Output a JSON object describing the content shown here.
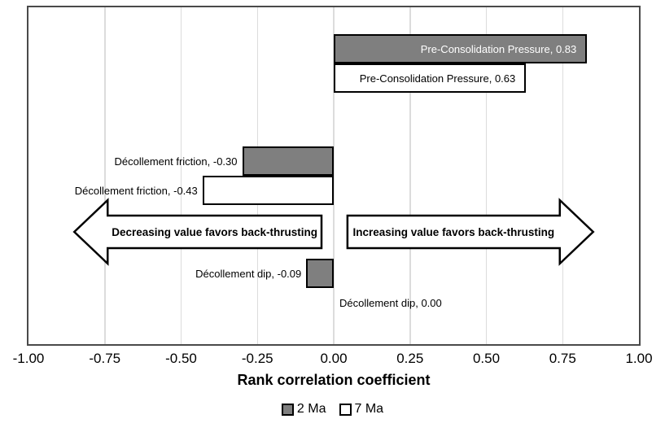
{
  "chart_data": {
    "type": "bar",
    "orientation": "horizontal",
    "title": "",
    "xlabel": "Rank correlation coefficient",
    "ylabel": "",
    "xlim": [
      -1.0,
      1.0
    ],
    "xticks": [
      "-1.00",
      "-0.75",
      "-0.50",
      "-0.25",
      "0.00",
      "0.25",
      "0.50",
      "0.75",
      "1.00"
    ],
    "xtick_values": [
      -1.0,
      -0.75,
      -0.5,
      -0.25,
      0.0,
      0.25,
      0.5,
      0.75,
      1.0
    ],
    "grid": true,
    "legend_position": "bottom",
    "categories": [
      "Pre-Consolidation Pressure",
      "Décollement friction",
      "Décollement dip"
    ],
    "series": [
      {
        "name": "2 Ma",
        "fill": "#7F7F7F",
        "values": [
          0.83,
          -0.3,
          -0.09
        ],
        "labels": [
          "Pre-Consolidation Pressure, 0.83",
          "Décollement friction, -0.30",
          "Décollement dip, -0.09"
        ],
        "label_pos": [
          "inside-end",
          "outside-left",
          "outside-left"
        ],
        "label_colors": [
          "#FFFFFF",
          "#000000",
          "#000000"
        ]
      },
      {
        "name": "7 Ma",
        "fill": "#FFFFFF",
        "values": [
          0.63,
          -0.43,
          0.0
        ],
        "labels": [
          "Pre-Consolidation Pressure, 0.63",
          "Décollement friction, -0.43",
          "Décollement dip, 0.00"
        ],
        "label_pos": [
          "inside-end",
          "outside-left",
          "outside-right"
        ],
        "label_colors": [
          "#000000",
          "#000000",
          "#000000"
        ]
      }
    ],
    "annotations": [
      {
        "text": "Decreasing value favors back-thrusting",
        "direction": "left",
        "tip_value": -0.85,
        "tail_value": -0.04
      },
      {
        "text": "Increasing value favors back-thrusting",
        "direction": "right",
        "tip_value": 0.85,
        "tail_value": 0.045
      }
    ],
    "colors": {
      "gray_fill": "#7F7F7F",
      "white_fill": "#FFFFFF",
      "bar_border": "#000000",
      "plot_border": "#4A4A4A",
      "gridline": "#DCDCDC",
      "text": "#000000",
      "inside_label_on_gray": "#FFFFFF"
    }
  }
}
